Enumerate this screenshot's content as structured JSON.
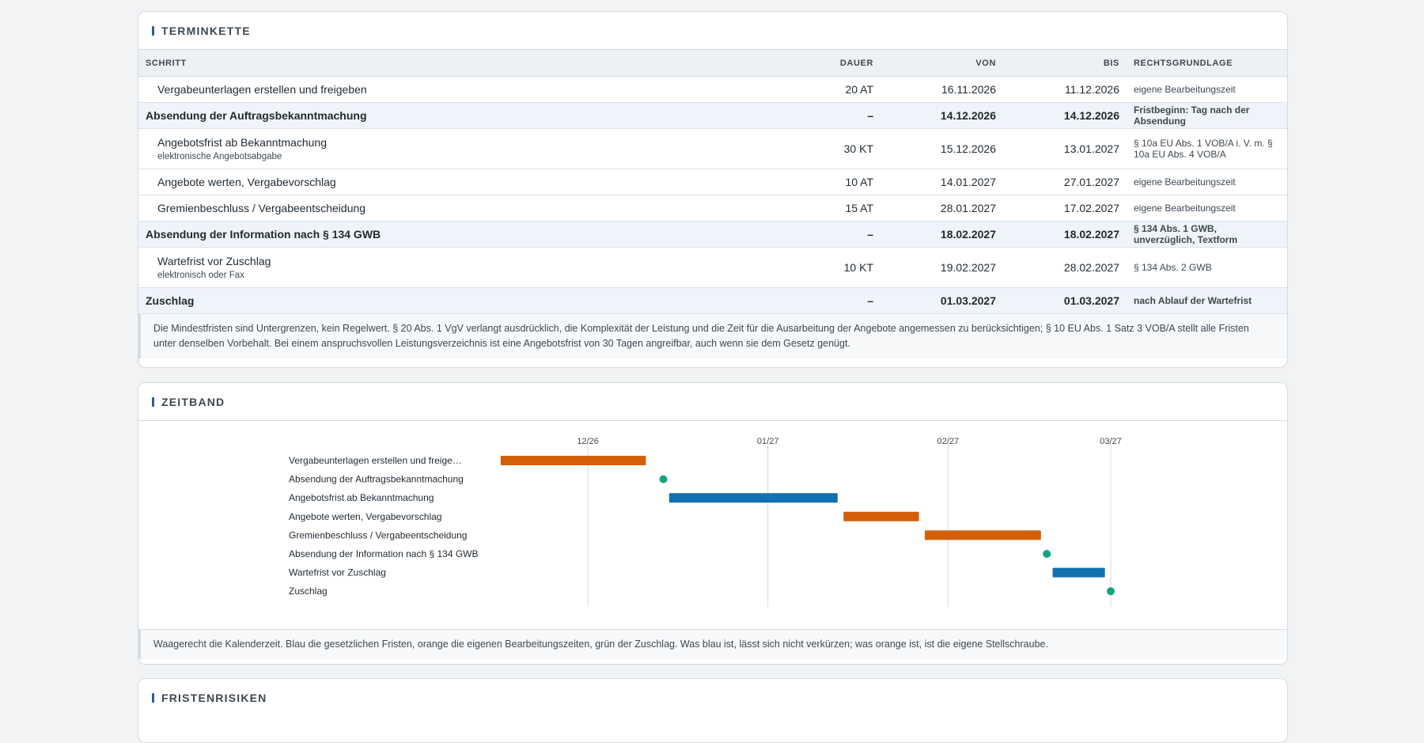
{
  "terminkette": {
    "title": "TERMINKETTE",
    "columns": {
      "step": "SCHRITT",
      "duration": "DAUER",
      "from": "VON",
      "to": "BIS",
      "law": "RECHTSGRUNDLAGE"
    },
    "rows": [
      {
        "step": "Vergabeunterlagen erstellen und freigeben",
        "sub": "",
        "duration": "20 AT",
        "from": "16.11.2026",
        "to": "11.12.2026",
        "law": "eigene Bearbeitungszeit",
        "milestone": false
      },
      {
        "step": "Absendung der Auftragsbekanntmachung",
        "sub": "",
        "duration": "–",
        "from": "14.12.2026",
        "to": "14.12.2026",
        "law": "Fristbeginn: Tag nach der Absendung",
        "milestone": true
      },
      {
        "step": "Angebotsfrist ab Bekanntmachung",
        "sub": "elektronische Angebotsabgabe",
        "duration": "30 KT",
        "from": "15.12.2026",
        "to": "13.01.2027",
        "law": "§ 10a EU Abs. 1 VOB/A i. V. m. § 10a EU Abs. 4 VOB/A",
        "milestone": false
      },
      {
        "step": "Angebote werten, Vergabevorschlag",
        "sub": "",
        "duration": "10 AT",
        "from": "14.01.2027",
        "to": "27.01.2027",
        "law": "eigene Bearbeitungszeit",
        "milestone": false
      },
      {
        "step": "Gremienbeschluss / Vergabeentscheidung",
        "sub": "",
        "duration": "15 AT",
        "from": "28.01.2027",
        "to": "17.02.2027",
        "law": "eigene Bearbeitungszeit",
        "milestone": false
      },
      {
        "step": "Absendung der Information nach § 134 GWB",
        "sub": "",
        "duration": "–",
        "from": "18.02.2027",
        "to": "18.02.2027",
        "law": "§ 134 Abs. 1 GWB, unverzüglich, Textform",
        "milestone": true
      },
      {
        "step": "Wartefrist vor Zuschlag",
        "sub": "elektronisch oder Fax",
        "duration": "10 KT",
        "from": "19.02.2027",
        "to": "28.02.2027",
        "law": "§ 134 Abs. 2 GWB",
        "milestone": false
      },
      {
        "step": "Zuschlag",
        "sub": "",
        "duration": "–",
        "from": "01.03.2027",
        "to": "01.03.2027",
        "law": "nach Ablauf der Wartefrist",
        "milestone": true
      }
    ],
    "note": "Die Mindestfristen sind Untergrenzen, kein Regelwert. § 20 Abs. 1 VgV verlangt ausdrücklich, die Komplexität der Leistung und die Zeit für die Ausarbeitung der Angebote angemessen zu berücksichtigen; § 10 EU Abs. 1 Satz 3 VOB/A stellt alle Fristen unter denselben Vorbehalt. Bei einem anspruchsvollen Leistungsverzeichnis ist eine Angebotsfrist von 30 Tagen angreifbar, auch wenn sie dem Gesetz genügt."
  },
  "zeitband": {
    "title": "ZEITBAND",
    "note": "Waagerecht die Kalenderzeit. Blau die gesetzlichen Fristen, orange die eigenen Bearbeitungszeiten, grün der Zuschlag. Was blau ist, lässt sich nicht verkürzen; was orange ist, ist die eigene Stellschraube."
  },
  "fristenrisiken": {
    "title": "FRISTENRISIKEN"
  },
  "colors": {
    "legal": "#1271b0",
    "own": "#d45f0a",
    "milestone": "#14a37f"
  },
  "chart_data": {
    "type": "gantt",
    "x_unit": "date",
    "x_ticks": [
      {
        "label": "12/26",
        "date": "2026-12-01"
      },
      {
        "label": "01/27",
        "date": "2027-01-01"
      },
      {
        "label": "02/27",
        "date": "2027-02-01"
      },
      {
        "label": "03/27",
        "date": "2027-03-01"
      }
    ],
    "tasks": [
      {
        "label": "Vergabeunterlagen erstellen und freige…",
        "start": "2026-11-16",
        "end": "2026-12-11",
        "kind": "own"
      },
      {
        "label": "Absendung der Auftragsbekanntmachung",
        "start": "2026-12-14",
        "end": "2026-12-14",
        "kind": "milestone"
      },
      {
        "label": "Angebotsfrist ab Bekanntmachung",
        "start": "2026-12-15",
        "end": "2027-01-13",
        "kind": "legal"
      },
      {
        "label": "Angebote werten, Vergabevorschlag",
        "start": "2027-01-14",
        "end": "2027-01-27",
        "kind": "own"
      },
      {
        "label": "Gremienbeschluss / Vergabeentscheidung",
        "start": "2027-01-28",
        "end": "2027-02-17",
        "kind": "own"
      },
      {
        "label": "Absendung der Information nach § 134 GWB",
        "start": "2027-02-18",
        "end": "2027-02-18",
        "kind": "milestone"
      },
      {
        "label": "Wartefrist vor Zuschlag",
        "start": "2027-02-19",
        "end": "2027-02-28",
        "kind": "legal"
      },
      {
        "label": "Zuschlag",
        "start": "2027-03-01",
        "end": "2027-03-01",
        "kind": "milestone"
      }
    ]
  }
}
